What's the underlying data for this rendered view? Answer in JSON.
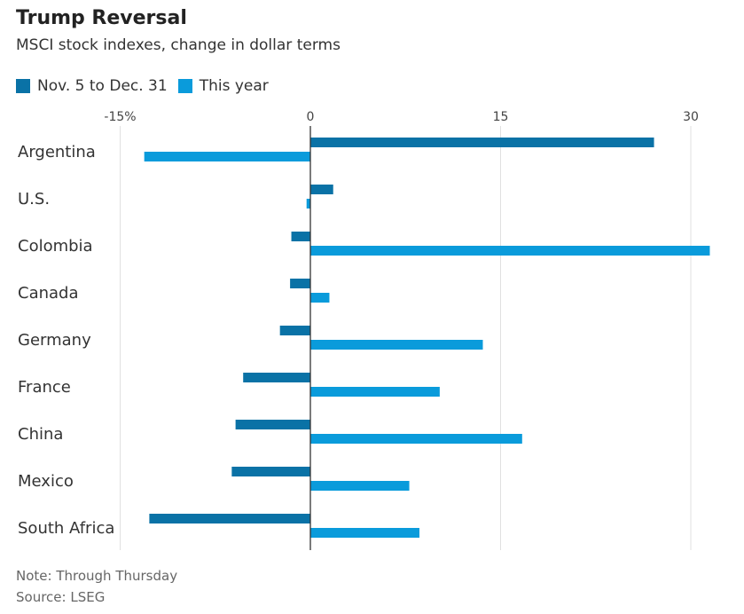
{
  "chart_data": {
    "type": "bar",
    "orientation": "horizontal",
    "title": "Trump Reversal",
    "subtitle": "MSCI stock indexes, change in dollar terms",
    "xlim": [
      -16,
      32
    ],
    "ticks": [
      -15,
      0,
      15,
      30
    ],
    "tick_labels": [
      "-15%",
      "0",
      "15",
      "30"
    ],
    "grid": true,
    "legend_position": "top-left",
    "categories": [
      "Argentina",
      "U.S.",
      "Colombia",
      "Canada",
      "Germany",
      "France",
      "China",
      "Mexico",
      "South Africa"
    ],
    "series": [
      {
        "name": "Nov. 5 to Dec. 31",
        "color": "#0a72a6",
        "values": [
          27.1,
          1.8,
          -1.5,
          -1.6,
          -2.4,
          -5.3,
          -5.9,
          -6.2,
          -12.7
        ]
      },
      {
        "name": "This year",
        "color": "#0a9bdb",
        "values": [
          -13.1,
          -0.3,
          31.5,
          1.5,
          13.6,
          10.2,
          16.7,
          7.8,
          8.6
        ]
      }
    ]
  },
  "footer": {
    "note": "Note: Through Thursday",
    "source": "Source: LSEG"
  }
}
